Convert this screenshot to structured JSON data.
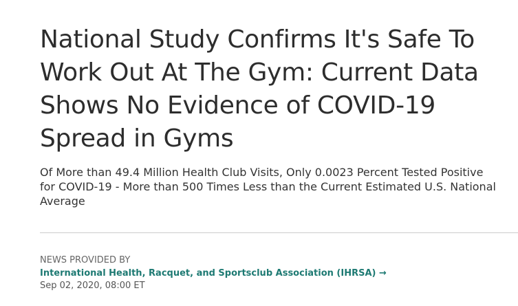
{
  "header": {
    "title": "National Study Confirms It's Safe To Work Out At The Gym: Current Data Shows No Evidence of COVID-19 Spread in Gyms",
    "subtitle": "Of More than 49.4 Million Health Club Visits, Only 0.0023 Percent Tested Positive for COVID-19 - More than 500 Times Less than the Current Estimated U.S. National Average"
  },
  "provider": {
    "label": "NEWS PROVIDED BY",
    "name": "International Health, Racquet, and Sportsclub Association (IHRSA) →",
    "date": "Sep 02, 2020, 08:00 ET"
  }
}
